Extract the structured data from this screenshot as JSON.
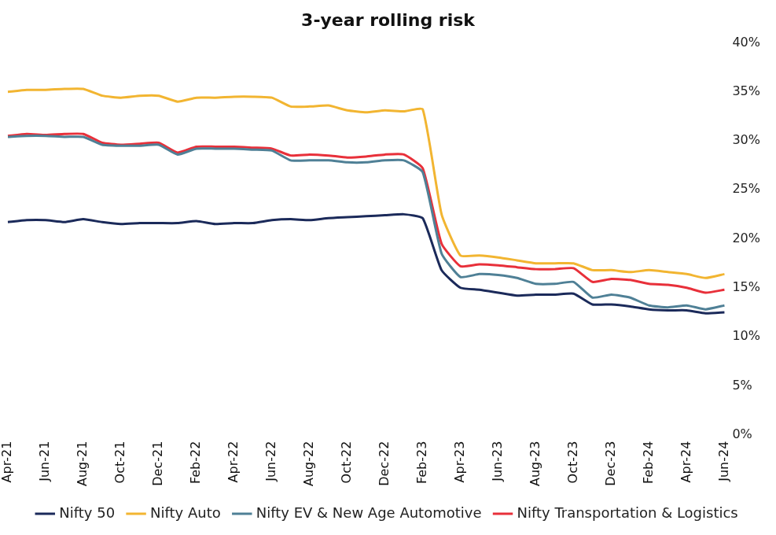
{
  "chart_data": {
    "type": "line",
    "title": "3-year rolling risk",
    "categories": [
      "Apr-21",
      null,
      "Jun-21",
      null,
      "Aug-21",
      null,
      "Oct-21",
      null,
      "Dec-21",
      null,
      "Feb-22",
      null,
      "Apr-22",
      null,
      "Jun-22",
      null,
      "Aug-22",
      null,
      "Oct-22",
      null,
      "Dec-22",
      null,
      "Feb-23",
      null,
      "Apr-23",
      null,
      "Jun-23",
      null,
      "Aug-23",
      null,
      "Oct-23",
      null,
      "Dec-23",
      null,
      "Feb-24",
      null,
      "Apr-24",
      null,
      "Jun-24"
    ],
    "series": [
      {
        "name": "Nifty 50",
        "color": "#1b2a5a",
        "values": [
          21.7,
          21.9,
          21.9,
          21.7,
          22.0,
          21.7,
          21.5,
          21.6,
          21.6,
          21.6,
          21.8,
          21.5,
          21.6,
          21.6,
          21.9,
          22.0,
          21.9,
          22.1,
          22.2,
          22.3,
          22.4,
          22.5,
          22.1,
          16.8,
          15.0,
          14.8,
          14.5,
          14.2,
          14.3,
          14.3,
          14.4,
          13.3,
          13.3,
          13.1,
          12.8,
          12.7,
          12.7,
          12.4,
          12.5
        ]
      },
      {
        "name": "Nifty Auto",
        "color": "#f2b531",
        "values": [
          35.0,
          35.2,
          35.2,
          35.3,
          35.3,
          34.6,
          34.4,
          34.6,
          34.6,
          34.0,
          34.4,
          34.4,
          34.5,
          34.5,
          34.4,
          33.5,
          33.5,
          33.6,
          33.1,
          32.9,
          33.1,
          33.0,
          33.2,
          22.5,
          18.3,
          18.3,
          18.1,
          17.8,
          17.5,
          17.5,
          17.5,
          16.8,
          16.8,
          16.6,
          16.8,
          16.6,
          16.4,
          16.0,
          16.4
        ]
      },
      {
        "name": "Nifty EV & New Age Automotive",
        "color": "#4f8096",
        "values": [
          30.4,
          30.5,
          30.5,
          30.4,
          30.4,
          29.6,
          29.5,
          29.5,
          29.6,
          28.6,
          29.2,
          29.2,
          29.2,
          29.1,
          29.0,
          28.0,
          28.0,
          28.0,
          27.8,
          27.8,
          28.0,
          28.0,
          26.8,
          18.5,
          16.1,
          16.4,
          16.3,
          16.0,
          15.4,
          15.4,
          15.6,
          14.0,
          14.3,
          14.0,
          13.2,
          13.0,
          13.2,
          12.8,
          13.2
        ]
      },
      {
        "name": "Nifty Transportation & Logistics",
        "color": "#e8303a",
        "values": [
          30.5,
          30.7,
          30.6,
          30.7,
          30.7,
          29.8,
          29.6,
          29.7,
          29.8,
          28.8,
          29.4,
          29.4,
          29.4,
          29.3,
          29.2,
          28.5,
          28.6,
          28.5,
          28.3,
          28.4,
          28.6,
          28.6,
          27.2,
          19.5,
          17.2,
          17.4,
          17.3,
          17.1,
          16.9,
          16.9,
          17.0,
          15.6,
          15.9,
          15.8,
          15.4,
          15.3,
          15.0,
          14.5,
          14.8
        ]
      }
    ],
    "ylim": [
      0,
      40
    ],
    "yticks": [
      {
        "value": 0,
        "label": "0%"
      },
      {
        "value": 5,
        "label": "5%"
      },
      {
        "value": 10,
        "label": "10%"
      },
      {
        "value": 15,
        "label": "15%"
      },
      {
        "value": 20,
        "label": "20%"
      },
      {
        "value": 25,
        "label": "25%"
      },
      {
        "value": 30,
        "label": "30%"
      },
      {
        "value": 35,
        "label": "35%"
      },
      {
        "value": 40,
        "label": "40%"
      }
    ],
    "grid": false,
    "legend": "bottom"
  }
}
